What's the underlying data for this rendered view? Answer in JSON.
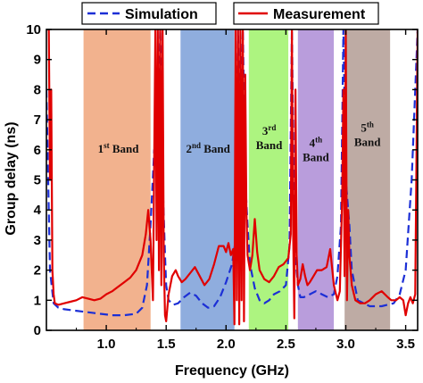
{
  "chart_data": {
    "type": "line",
    "xlabel": "Frequency (GHz)",
    "ylabel": "Group delay (ns)",
    "xlim": [
      0.5,
      3.6
    ],
    "ylim": [
      0,
      10
    ],
    "x_ticks": [
      "1.0",
      "1.5",
      "2.0",
      "2.5",
      "3.0",
      "3.5"
    ],
    "y_ticks": [
      "0",
      "1",
      "2",
      "3",
      "4",
      "5",
      "6",
      "7",
      "8",
      "9",
      "10"
    ],
    "x_tick_values": [
      1.0,
      1.5,
      2.0,
      2.5,
      3.0,
      3.5
    ],
    "y_tick_values": [
      0,
      1,
      2,
      3,
      4,
      5,
      6,
      7,
      8,
      9,
      10
    ],
    "legend_position": "top",
    "bands": [
      {
        "base": "1",
        "sup": "st",
        "suffix": " Band",
        "x_range": [
          0.81,
          1.37
        ],
        "color": "#f0a57a",
        "label_at": [
          1.1,
          5.9
        ],
        "lines": 1
      },
      {
        "base": "2",
        "sup": "nd",
        "suffix": " Band",
        "x_range": [
          1.62,
          2.07
        ],
        "color": "#7b9fd8",
        "label_at": [
          1.85,
          5.9
        ],
        "lines": 1
      },
      {
        "base": "3",
        "sup": "rd",
        "suffix": "Band",
        "x_range": [
          2.19,
          2.52
        ],
        "color": "#9ff26a",
        "label_at": [
          2.36,
          6.5
        ],
        "lines": 2
      },
      {
        "base": "4",
        "sup": "th",
        "suffix": "Band",
        "x_range": [
          2.6,
          2.9
        ],
        "color": "#ad8cd6",
        "label_at": [
          2.75,
          6.1
        ],
        "lines": 2
      },
      {
        "base": "5",
        "sup": "th",
        "suffix": "Band",
        "x_range": [
          2.99,
          3.37
        ],
        "color": "#b39c94",
        "label_at": [
          3.18,
          6.6
        ],
        "lines": 2
      }
    ],
    "series": [
      {
        "name": "Simulation",
        "color": "#1c2fd6",
        "dash": true,
        "x": [
          0.5,
          0.53,
          0.56,
          0.6,
          0.65,
          0.75,
          0.85,
          0.95,
          1.05,
          1.15,
          1.25,
          1.3,
          1.34,
          1.37,
          1.4,
          1.43,
          1.45,
          1.47,
          1.49,
          1.5,
          1.52,
          1.56,
          1.6,
          1.65,
          1.7,
          1.75,
          1.8,
          1.85,
          1.9,
          1.95,
          2.0,
          2.05,
          2.08,
          2.1,
          2.12,
          2.14,
          2.16,
          2.18,
          2.2,
          2.24,
          2.28,
          2.32,
          2.36,
          2.4,
          2.45,
          2.5,
          2.53,
          2.55,
          2.57,
          2.6,
          2.62,
          2.65,
          2.7,
          2.75,
          2.8,
          2.85,
          2.9,
          2.93,
          2.96,
          2.98,
          3.0,
          3.03,
          3.05,
          3.1,
          3.2,
          3.3,
          3.4,
          3.45,
          3.5,
          3.55,
          3.6
        ],
        "y": [
          8.0,
          2.0,
          0.9,
          0.75,
          0.7,
          0.65,
          0.6,
          0.55,
          0.5,
          0.5,
          0.55,
          0.75,
          1.5,
          3.5,
          6.0,
          5.0,
          10.0,
          5.0,
          2.5,
          1.5,
          1.0,
          0.85,
          0.9,
          1.1,
          1.25,
          1.15,
          0.9,
          0.75,
          0.8,
          1.1,
          1.6,
          2.2,
          3.0,
          10.0,
          6.0,
          10.0,
          5.0,
          3.5,
          2.2,
          1.4,
          1.0,
          0.9,
          1.0,
          1.2,
          1.3,
          1.5,
          2.8,
          10.0,
          3.0,
          1.5,
          1.1,
          1.1,
          1.2,
          1.3,
          1.2,
          1.1,
          1.2,
          1.8,
          3.5,
          10.0,
          5.0,
          3.5,
          2.0,
          1.0,
          0.8,
          0.8,
          0.9,
          1.2,
          2.0,
          5.0,
          10.0
        ]
      },
      {
        "name": "Measurement",
        "color": "#e00000",
        "dash": false,
        "x": [
          0.5,
          0.52,
          0.53,
          0.54,
          0.55,
          0.56,
          0.57,
          0.6,
          0.65,
          0.7,
          0.75,
          0.8,
          0.85,
          0.9,
          0.95,
          1.0,
          1.05,
          1.1,
          1.15,
          1.2,
          1.25,
          1.3,
          1.33,
          1.35,
          1.37,
          1.39,
          1.41,
          1.42,
          1.43,
          1.44,
          1.45,
          1.46,
          1.47,
          1.48,
          1.49,
          1.5,
          1.52,
          1.55,
          1.58,
          1.6,
          1.63,
          1.66,
          1.7,
          1.74,
          1.78,
          1.82,
          1.86,
          1.9,
          1.94,
          1.98,
          2.0,
          2.02,
          2.04,
          2.06,
          2.07,
          2.08,
          2.09,
          2.1,
          2.11,
          2.12,
          2.13,
          2.14,
          2.15,
          2.16,
          2.17,
          2.18,
          2.2,
          2.22,
          2.24,
          2.26,
          2.28,
          2.32,
          2.36,
          2.4,
          2.44,
          2.48,
          2.5,
          2.52,
          2.54,
          2.55,
          2.56,
          2.57,
          2.58,
          2.59,
          2.6,
          2.62,
          2.64,
          2.66,
          2.68,
          2.7,
          2.73,
          2.76,
          2.8,
          2.84,
          2.87,
          2.9,
          2.93,
          2.95,
          2.97,
          2.98,
          2.99,
          3.0,
          3.01,
          3.02,
          3.03,
          3.05,
          3.08,
          3.12,
          3.16,
          3.2,
          3.25,
          3.3,
          3.35,
          3.38,
          3.42,
          3.45,
          3.48,
          3.5,
          3.52,
          3.54,
          3.56,
          3.58,
          3.6
        ],
        "y": [
          10.0,
          10.0,
          5.0,
          8.0,
          2.0,
          1.2,
          0.9,
          0.85,
          0.9,
          0.95,
          1.0,
          1.1,
          1.05,
          1.0,
          1.05,
          1.2,
          1.3,
          1.45,
          1.6,
          1.75,
          2.0,
          2.5,
          3.2,
          4.0,
          3.0,
          1.0,
          10.0,
          3.0,
          10.0,
          2.0,
          10.0,
          1.5,
          10.0,
          2.5,
          0.5,
          0.3,
          1.2,
          1.8,
          2.0,
          1.8,
          1.6,
          1.7,
          1.9,
          2.1,
          1.8,
          1.5,
          1.7,
          2.2,
          2.8,
          2.8,
          2.6,
          2.9,
          2.5,
          2.7,
          0.2,
          10.0,
          1.0,
          10.0,
          0.2,
          10.0,
          1.0,
          10.0,
          0.3,
          8.5,
          4.0,
          2.5,
          2.0,
          2.5,
          3.7,
          2.6,
          2.0,
          1.7,
          1.6,
          1.8,
          2.1,
          2.2,
          2.3,
          2.4,
          3.2,
          10.0,
          3.5,
          0.4,
          8.0,
          2.5,
          1.5,
          1.7,
          2.2,
          1.8,
          1.5,
          1.6,
          1.8,
          2.0,
          2.0,
          2.1,
          2.7,
          1.5,
          1.0,
          1.3,
          4.5,
          8.0,
          1.8,
          10.0,
          1.0,
          4.0,
          2.5,
          1.5,
          1.0,
          0.9,
          0.9,
          1.0,
          1.2,
          1.3,
          1.1,
          1.0,
          1.0,
          1.1,
          1.0,
          0.5,
          0.9,
          1.1,
          0.9,
          1.2,
          10.0
        ]
      }
    ]
  }
}
